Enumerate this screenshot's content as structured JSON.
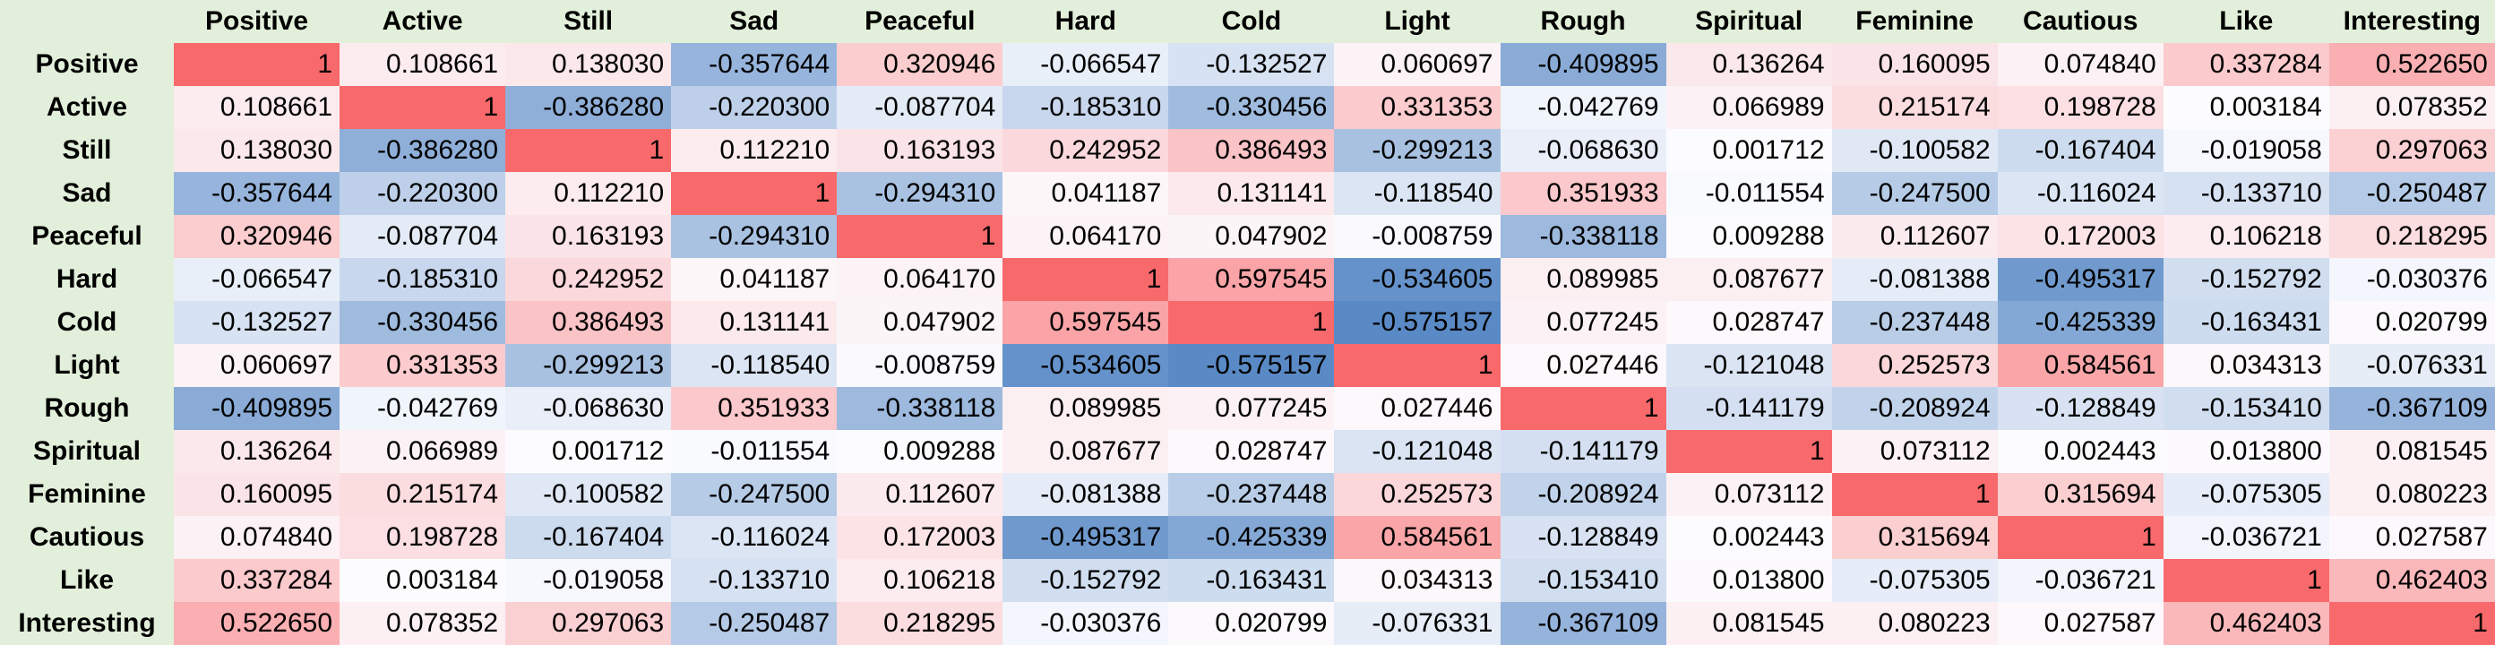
{
  "table": {
    "columns": [
      "Positive",
      "Active",
      "Still",
      "Sad",
      "Peaceful",
      "Hard",
      "Cold",
      "Light",
      "Rough",
      "Spiritual",
      "Feminine",
      "Cautious",
      "Like",
      "Interesting"
    ],
    "rows": [
      {
        "label": "Positive",
        "values": [
          "1",
          "0.108661",
          "0.138030",
          "-0.357644",
          "0.320946",
          "-0.066547",
          "-0.132527",
          "0.060697",
          "-0.409895",
          "0.136264",
          "0.160095",
          "0.074840",
          "0.337284",
          "0.522650"
        ]
      },
      {
        "label": "Active",
        "values": [
          "0.108661",
          "1",
          "-0.386280",
          "-0.220300",
          "-0.087704",
          "-0.185310",
          "-0.330456",
          "0.331353",
          "-0.042769",
          "0.066989",
          "0.215174",
          "0.198728",
          "0.003184",
          "0.078352"
        ]
      },
      {
        "label": "Still",
        "values": [
          "0.138030",
          "-0.386280",
          "1",
          "0.112210",
          "0.163193",
          "0.242952",
          "0.386493",
          "-0.299213",
          "-0.068630",
          "0.001712",
          "-0.100582",
          "-0.167404",
          "-0.019058",
          "0.297063"
        ]
      },
      {
        "label": "Sad",
        "values": [
          "-0.357644",
          "-0.220300",
          "0.112210",
          "1",
          "-0.294310",
          "0.041187",
          "0.131141",
          "-0.118540",
          "0.351933",
          "-0.011554",
          "-0.247500",
          "-0.116024",
          "-0.133710",
          "-0.250487"
        ]
      },
      {
        "label": "Peaceful",
        "values": [
          "0.320946",
          "-0.087704",
          "0.163193",
          "-0.294310",
          "1",
          "0.064170",
          "0.047902",
          "-0.008759",
          "-0.338118",
          "0.009288",
          "0.112607",
          "0.172003",
          "0.106218",
          "0.218295"
        ]
      },
      {
        "label": "Hard",
        "values": [
          "-0.066547",
          "-0.185310",
          "0.242952",
          "0.041187",
          "0.064170",
          "1",
          "0.597545",
          "-0.534605",
          "0.089985",
          "0.087677",
          "-0.081388",
          "-0.495317",
          "-0.152792",
          "-0.030376"
        ]
      },
      {
        "label": "Cold",
        "values": [
          "-0.132527",
          "-0.330456",
          "0.386493",
          "0.131141",
          "0.047902",
          "0.597545",
          "1",
          "-0.575157",
          "0.077245",
          "0.028747",
          "-0.237448",
          "-0.425339",
          "-0.163431",
          "0.020799"
        ]
      },
      {
        "label": "Light",
        "values": [
          "0.060697",
          "0.331353",
          "-0.299213",
          "-0.118540",
          "-0.008759",
          "-0.534605",
          "-0.575157",
          "1",
          "0.027446",
          "-0.121048",
          "0.252573",
          "0.584561",
          "0.034313",
          "-0.076331"
        ]
      },
      {
        "label": "Rough",
        "values": [
          "-0.409895",
          "-0.042769",
          "-0.068630",
          "0.351933",
          "-0.338118",
          "0.089985",
          "0.077245",
          "0.027446",
          "1",
          "-0.141179",
          "-0.208924",
          "-0.128849",
          "-0.153410",
          "-0.367109"
        ]
      },
      {
        "label": "Spiritual",
        "values": [
          "0.136264",
          "0.066989",
          "0.001712",
          "-0.011554",
          "0.009288",
          "0.087677",
          "0.028747",
          "-0.121048",
          "-0.141179",
          "1",
          "0.073112",
          "0.002443",
          "0.013800",
          "0.081545"
        ]
      },
      {
        "label": "Feminine",
        "values": [
          "0.160095",
          "0.215174",
          "-0.100582",
          "-0.247500",
          "0.112607",
          "-0.081388",
          "-0.237448",
          "0.252573",
          "-0.208924",
          "0.073112",
          "1",
          "0.315694",
          "-0.075305",
          "0.080223"
        ]
      },
      {
        "label": "Cautious",
        "values": [
          "0.074840",
          "0.198728",
          "-0.167404",
          "-0.116024",
          "0.172003",
          "-0.495317",
          "-0.425339",
          "0.584561",
          "-0.128849",
          "0.002443",
          "0.315694",
          "1",
          "-0.036721",
          "0.027587"
        ]
      },
      {
        "label": "Like",
        "values": [
          "0.337284",
          "0.003184",
          "-0.019058",
          "-0.133710",
          "0.106218",
          "-0.152792",
          "-0.163431",
          "0.034313",
          "-0.153410",
          "0.013800",
          "-0.075305",
          "-0.036721",
          "1",
          "0.462403"
        ]
      },
      {
        "label": "Interesting",
        "values": [
          "0.522650",
          "0.078352",
          "0.297063",
          "-0.250487",
          "0.218295",
          "-0.030376",
          "0.020799",
          "-0.076331",
          "-0.367109",
          "0.081545",
          "0.080223",
          "0.027587",
          "0.462403",
          "1"
        ]
      }
    ]
  },
  "colors": {
    "header_bg": "#e2efda",
    "positive_max": "#f8696b",
    "negative_max": "#5a8ac6",
    "neutral": "#fcfcff",
    "text": "#000000"
  }
}
